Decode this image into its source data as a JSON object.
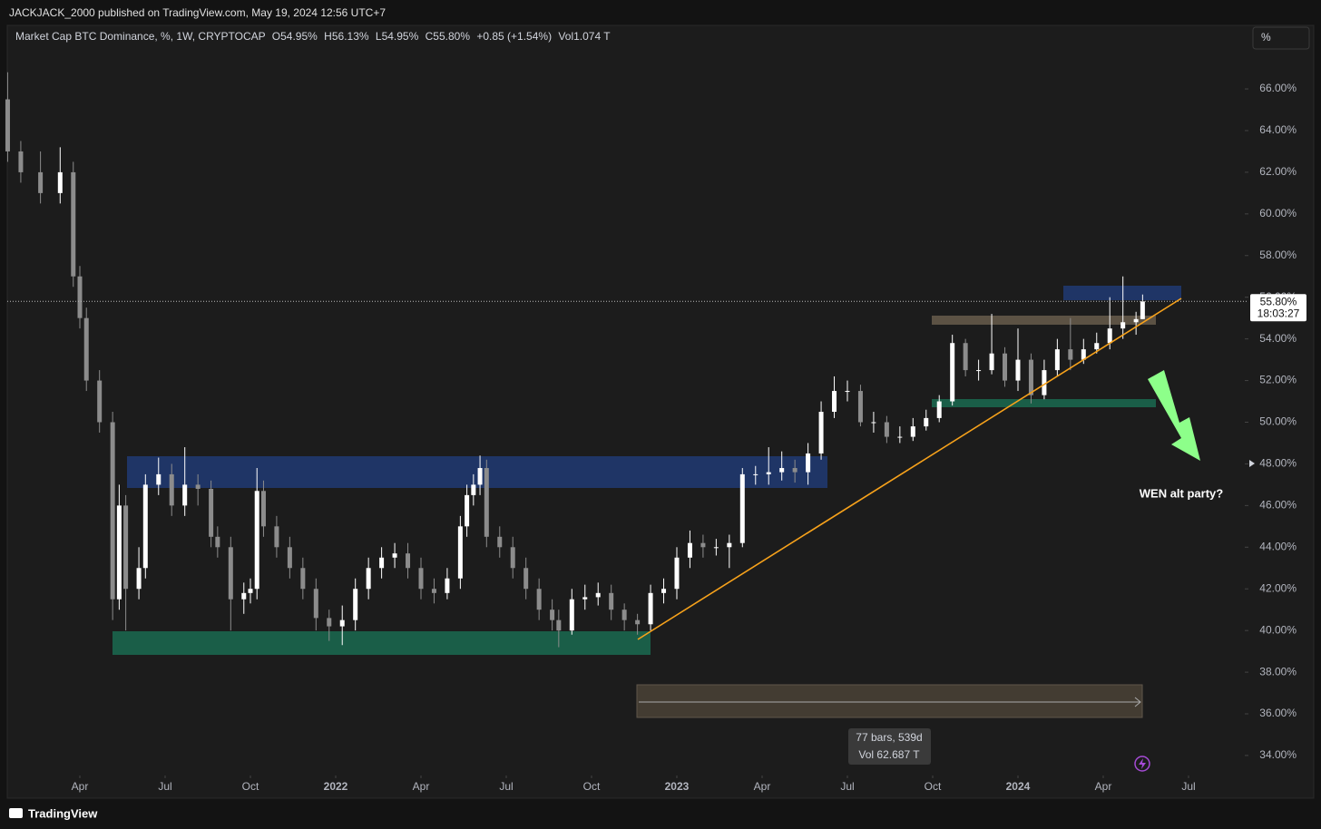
{
  "header": {
    "publisher": "JACKJACK_2000 published on TradingView.com, May 19, 2024 12:56 UTC+7",
    "brand": "TradingView",
    "scale_button": "%"
  },
  "chart_data": {
    "type": "candlestick",
    "symbol": "Market Cap BTC Dominance, %, 1W, CRYPTOCAP",
    "legend": {
      "open_label": "O",
      "open": "54.95%",
      "high_label": "H",
      "high": "56.13%",
      "low_label": "L",
      "low": "54.95%",
      "close_label": "C",
      "close": "55.80%",
      "change": "+0.85 (+1.54%)",
      "vol_label": "Vol",
      "vol": "1.074 T"
    },
    "last_price_label": "55.80%",
    "last_price": 55.8,
    "countdown": "18:03:27",
    "annotation": "WEN alt party?",
    "measure": {
      "bars": "77 bars, 539d",
      "vol": "Vol 62.687 T"
    },
    "up_color": "#ffffff",
    "down_color": "#8c8c8c",
    "xlim": [
      -12.17,
      177.3
    ],
    "ylim": [
      33.04,
      69.05
    ],
    "xticks": [
      {
        "value": 0,
        "label": "Apr"
      },
      {
        "value": 13,
        "label": "Jul"
      },
      {
        "value": 26,
        "label": "Oct"
      },
      {
        "value": 39,
        "label": "2022"
      },
      {
        "value": 52,
        "label": "Apr"
      },
      {
        "value": 65,
        "label": "Jul"
      },
      {
        "value": 78,
        "label": "Oct"
      },
      {
        "value": 91,
        "label": "2023"
      },
      {
        "value": 104,
        "label": "Apr"
      },
      {
        "value": 117,
        "label": "Jul"
      },
      {
        "value": 130,
        "label": "Oct"
      },
      {
        "value": 143,
        "label": "2024"
      },
      {
        "value": 156,
        "label": "Apr"
      },
      {
        "value": 169,
        "label": "Jul"
      }
    ],
    "yticks": [
      {
        "value": 34,
        "label": "34.00%"
      },
      {
        "value": 36,
        "label": "36.00%"
      },
      {
        "value": 38,
        "label": "38.00%"
      },
      {
        "value": 40,
        "label": "40.00%"
      },
      {
        "value": 42,
        "label": "42.00%"
      },
      {
        "value": 44,
        "label": "44.00%"
      },
      {
        "value": 46,
        "label": "46.00%"
      },
      {
        "value": 48,
        "label": "48.00%"
      },
      {
        "value": 50,
        "label": "50.00%"
      },
      {
        "value": 52,
        "label": "52.00%"
      },
      {
        "value": 54,
        "label": "54.00%"
      },
      {
        "value": 56,
        "label": "56.00%"
      },
      {
        "value": 58,
        "label": "58.00%"
      },
      {
        "value": 60,
        "label": "60.00%"
      },
      {
        "value": 62,
        "label": "62.00%"
      },
      {
        "value": 64,
        "label": "64.00%"
      },
      {
        "value": 66,
        "label": "66.00%"
      }
    ],
    "x": [
      -11,
      -9,
      -6,
      -3,
      -1,
      0,
      1,
      3,
      5,
      6,
      7,
      9,
      10,
      12,
      14,
      16,
      18,
      20,
      21,
      23,
      25,
      26,
      27,
      28,
      30,
      32,
      34,
      36,
      38,
      40,
      42,
      44,
      46,
      48,
      50,
      52,
      54,
      56,
      58,
      59,
      60,
      61,
      62,
      64,
      66,
      68,
      70,
      72,
      73,
      75,
      77,
      79,
      81,
      83,
      85,
      87,
      89,
      91,
      93,
      95,
      97,
      99,
      101,
      103,
      105,
      107,
      109,
      111,
      113,
      115,
      117,
      119,
      121,
      123,
      125,
      127,
      129,
      131,
      133,
      135,
      137,
      139,
      141,
      143,
      145,
      147,
      149,
      151,
      153,
      155,
      157,
      159,
      161,
      162
    ],
    "open": [
      65.5,
      63,
      62,
      61,
      62,
      57,
      55,
      52,
      50,
      41.5,
      46,
      42,
      43,
      47,
      47.5,
      46,
      47,
      46.8,
      44.5,
      44,
      41.5,
      41.8,
      42,
      46.7,
      45,
      44,
      43,
      42,
      40.6,
      40.2,
      40.5,
      42,
      43,
      43.5,
      43.7,
      43,
      42,
      41.8,
      42.5,
      45,
      46.5,
      47,
      47.8,
      44.5,
      44,
      43,
      42,
      41,
      40.5,
      40,
      41.5,
      41.6,
      41.8,
      41,
      40.5,
      40.3,
      41.8,
      42,
      43.5,
      44.2,
      44,
      44,
      44.2,
      47.5,
      47.5,
      47.6,
      47.8,
      47.6,
      48.5,
      50.5,
      51.5,
      51.5,
      50,
      50,
      49.3,
      49.3,
      49.8,
      50.2,
      51,
      53.8,
      52.5,
      52.5,
      53.3,
      52,
      53,
      51.3,
      52.5,
      53.5,
      53,
      53.5,
      53.8,
      54.5,
      54.8,
      54.95
    ],
    "high": [
      66.8,
      63.5,
      63,
      63.2,
      62.5,
      57.5,
      55.5,
      52.5,
      50.5,
      47,
      46.5,
      44,
      47.5,
      48.3,
      48,
      48.8,
      47.5,
      47.2,
      45,
      44.5,
      42.3,
      42.5,
      47.8,
      47.2,
      45.5,
      44.5,
      43.5,
      42.5,
      41,
      41.2,
      42.5,
      43.5,
      44,
      44.2,
      44.2,
      43.5,
      42.5,
      43,
      45.5,
      47,
      47.5,
      48.4,
      48.2,
      45,
      44.5,
      43.5,
      42.5,
      41.5,
      41,
      42,
      42.2,
      42.3,
      42.2,
      41.3,
      40.8,
      42.2,
      42.5,
      44,
      44.8,
      44.6,
      44.4,
      44.6,
      47.8,
      47.9,
      48.8,
      48.6,
      48.2,
      49,
      51,
      52.2,
      52,
      51.8,
      50.5,
      50.3,
      49.8,
      50.2,
      50.6,
      51.3,
      54.2,
      54,
      53,
      55.2,
      53.6,
      54.5,
      53.3,
      53,
      54,
      55,
      54,
      54.3,
      56,
      57,
      55.3,
      56.13
    ],
    "low": [
      62.5,
      61.5,
      60.5,
      60.5,
      56.5,
      54.5,
      51.5,
      49.5,
      40.5,
      41,
      40,
      41.5,
      42.5,
      46.5,
      45.5,
      45.5,
      46,
      44,
      43.5,
      40,
      40.8,
      41.3,
      41.5,
      44.5,
      43.5,
      42.5,
      41.5,
      40,
      39.5,
      39.3,
      40,
      41.5,
      42.5,
      43,
      42.5,
      41.5,
      41.3,
      41.5,
      42,
      44.5,
      46,
      46.5,
      44,
      43.5,
      42.5,
      41.5,
      40.5,
      40,
      39.2,
      39.8,
      41,
      41.2,
      40.5,
      40,
      39.8,
      40,
      41.3,
      41.5,
      43,
      43.5,
      43.6,
      43,
      44,
      47,
      47,
      47.2,
      47.1,
      47,
      48.2,
      50.2,
      51,
      49.8,
      49.5,
      49,
      49,
      49.1,
      49.6,
      50,
      50.8,
      52.2,
      52,
      52.3,
      51.7,
      51.5,
      50.9,
      51.1,
      52.2,
      52.5,
      52.8,
      53.3,
      53.5,
      54,
      54.2,
      54.95
    ],
    "close": [
      63,
      62,
      61,
      62,
      57,
      55,
      52,
      50,
      41.5,
      46,
      42,
      43,
      47,
      47.5,
      46,
      47,
      46.8,
      44.5,
      44,
      41.5,
      41.8,
      42,
      46.7,
      45,
      44,
      43,
      42,
      40.6,
      40.2,
      40.5,
      42,
      43,
      43.5,
      43.7,
      43,
      42,
      41.8,
      42.5,
      45,
      46.5,
      47,
      47.8,
      44.5,
      44,
      43,
      42,
      41,
      40.5,
      40,
      41.5,
      41.6,
      41.8,
      41,
      40.5,
      40.3,
      41.8,
      42,
      43.5,
      44.2,
      44,
      44,
      44.2,
      47.5,
      47.5,
      47.6,
      47.8,
      47.6,
      48.5,
      50.5,
      51.5,
      51.5,
      50,
      50,
      49.3,
      49.3,
      49.8,
      50.2,
      51,
      53.8,
      52.5,
      52.5,
      53.3,
      52,
      53,
      51.3,
      52.5,
      53.5,
      53,
      53.5,
      53.8,
      54.5,
      54.8,
      54.95,
      55.8
    ]
  }
}
